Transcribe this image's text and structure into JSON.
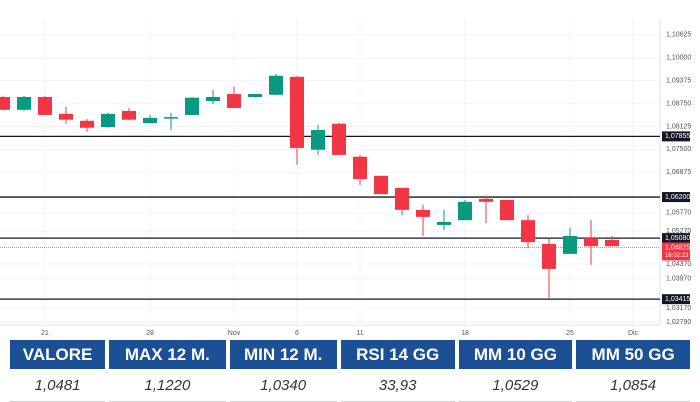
{
  "chart_data": {
    "type": "candlestick",
    "categories": [
      null,
      null,
      "21",
      null,
      null,
      null,
      null,
      "28",
      null,
      null,
      null,
      "Nov",
      null,
      null,
      "6",
      null,
      null,
      "11",
      null,
      null,
      null,
      null,
      "18",
      null,
      null,
      null,
      null,
      "25",
      null,
      null,
      "Dic"
    ],
    "open": [
      1.0893,
      1.0858,
      1.0893,
      1.0847,
      1.0828,
      1.0811,
      1.0855,
      1.0822,
      1.0836,
      1.0844,
      1.0882,
      1.0901,
      1.0893,
      1.0899,
      1.0948,
      1.0749,
      1.082,
      1.073,
      1.0678,
      1.0645,
      1.0585,
      1.0544,
      1.0557,
      1.0615,
      1.0612,
      1.0557,
      1.0492,
      1.0465,
      1.0508,
      1.0503,
      null
    ],
    "high": [
      1.0896,
      1.0896,
      1.0896,
      1.0866,
      1.0833,
      1.085,
      1.0863,
      1.0844,
      1.085,
      1.0893,
      1.0912,
      1.0921,
      1.0901,
      1.0956,
      1.0951,
      1.0817,
      1.0822,
      1.0735,
      1.0678,
      1.0645,
      1.0599,
      1.0585,
      1.0612,
      1.0623,
      1.0612,
      1.0571,
      1.0508,
      1.0536,
      1.0557,
      1.0514,
      null
    ],
    "low": [
      1.0858,
      1.0855,
      1.0844,
      1.082,
      1.0798,
      1.0809,
      1.0831,
      1.082,
      1.0803,
      1.0844,
      1.0874,
      1.0863,
      1.0891,
      1.0899,
      1.0708,
      1.0735,
      1.0735,
      1.0653,
      1.0628,
      1.0571,
      1.0514,
      1.053,
      1.0557,
      1.0549,
      1.0557,
      1.0481,
      1.0345,
      1.0465,
      1.0435,
      1.0486,
      null
    ],
    "close": [
      1.0858,
      1.0893,
      1.0844,
      1.0831,
      1.0809,
      1.0847,
      1.0831,
      1.0836,
      1.0838,
      1.0891,
      1.0893,
      1.0863,
      1.0901,
      1.0951,
      1.0754,
      1.0803,
      1.0735,
      1.0669,
      1.0628,
      1.0585,
      1.0566,
      1.0552,
      1.0607,
      1.0607,
      1.0557,
      1.0497,
      1.0424,
      1.0514,
      1.0486,
      1.0486,
      null
    ],
    "up_color": "#089981",
    "down_color": "#f23645",
    "ylim": [
      1.0271,
      1.1103
    ],
    "yticks": [
      {
        "value": 1.10625,
        "label": "1,10625"
      },
      {
        "value": 1.1,
        "label": "1,10000"
      },
      {
        "value": 1.09375,
        "label": "1,09375"
      },
      {
        "value": 1.0875,
        "label": "1,08750"
      },
      {
        "value": 1.08125,
        "label": "1,08125"
      },
      {
        "value": 1.075,
        "label": "1,07500"
      },
      {
        "value": 1.06875,
        "label": "1,06875"
      },
      {
        "value": 1.0577,
        "label": "1,05770"
      },
      {
        "value": 1.0527,
        "label": "1,05270"
      },
      {
        "value": 1.0437,
        "label": "1,04370"
      },
      {
        "value": 1.0397,
        "label": "1,03970"
      },
      {
        "value": 1.0317,
        "label": "1,03170"
      },
      {
        "value": 1.0279,
        "label": "1,02790"
      }
    ],
    "grid": true,
    "levels": [
      {
        "value": 1.07855,
        "label": "1,07855"
      },
      {
        "value": 1.062,
        "label": "1,06200"
      },
      {
        "value": 1.0508,
        "label": "1,05080"
      },
      {
        "value": 1.03415,
        "label": "1,03415"
      }
    ],
    "level_color": "#131722",
    "last_price": {
      "value": 1.04825,
      "label": "1,04825",
      "time": "16:02:23",
      "color": "#f23645"
    }
  },
  "table": {
    "header": [
      "VALORE",
      "MAX 12 M.",
      "MIN 12 M.",
      "RSI 14 GG",
      "MM 10 GG",
      "MM 50 GG"
    ],
    "rows": [
      [
        "1,0481",
        "1,1220",
        "1,0340",
        "33,93",
        "1,0529",
        "1,0854"
      ]
    ]
  }
}
